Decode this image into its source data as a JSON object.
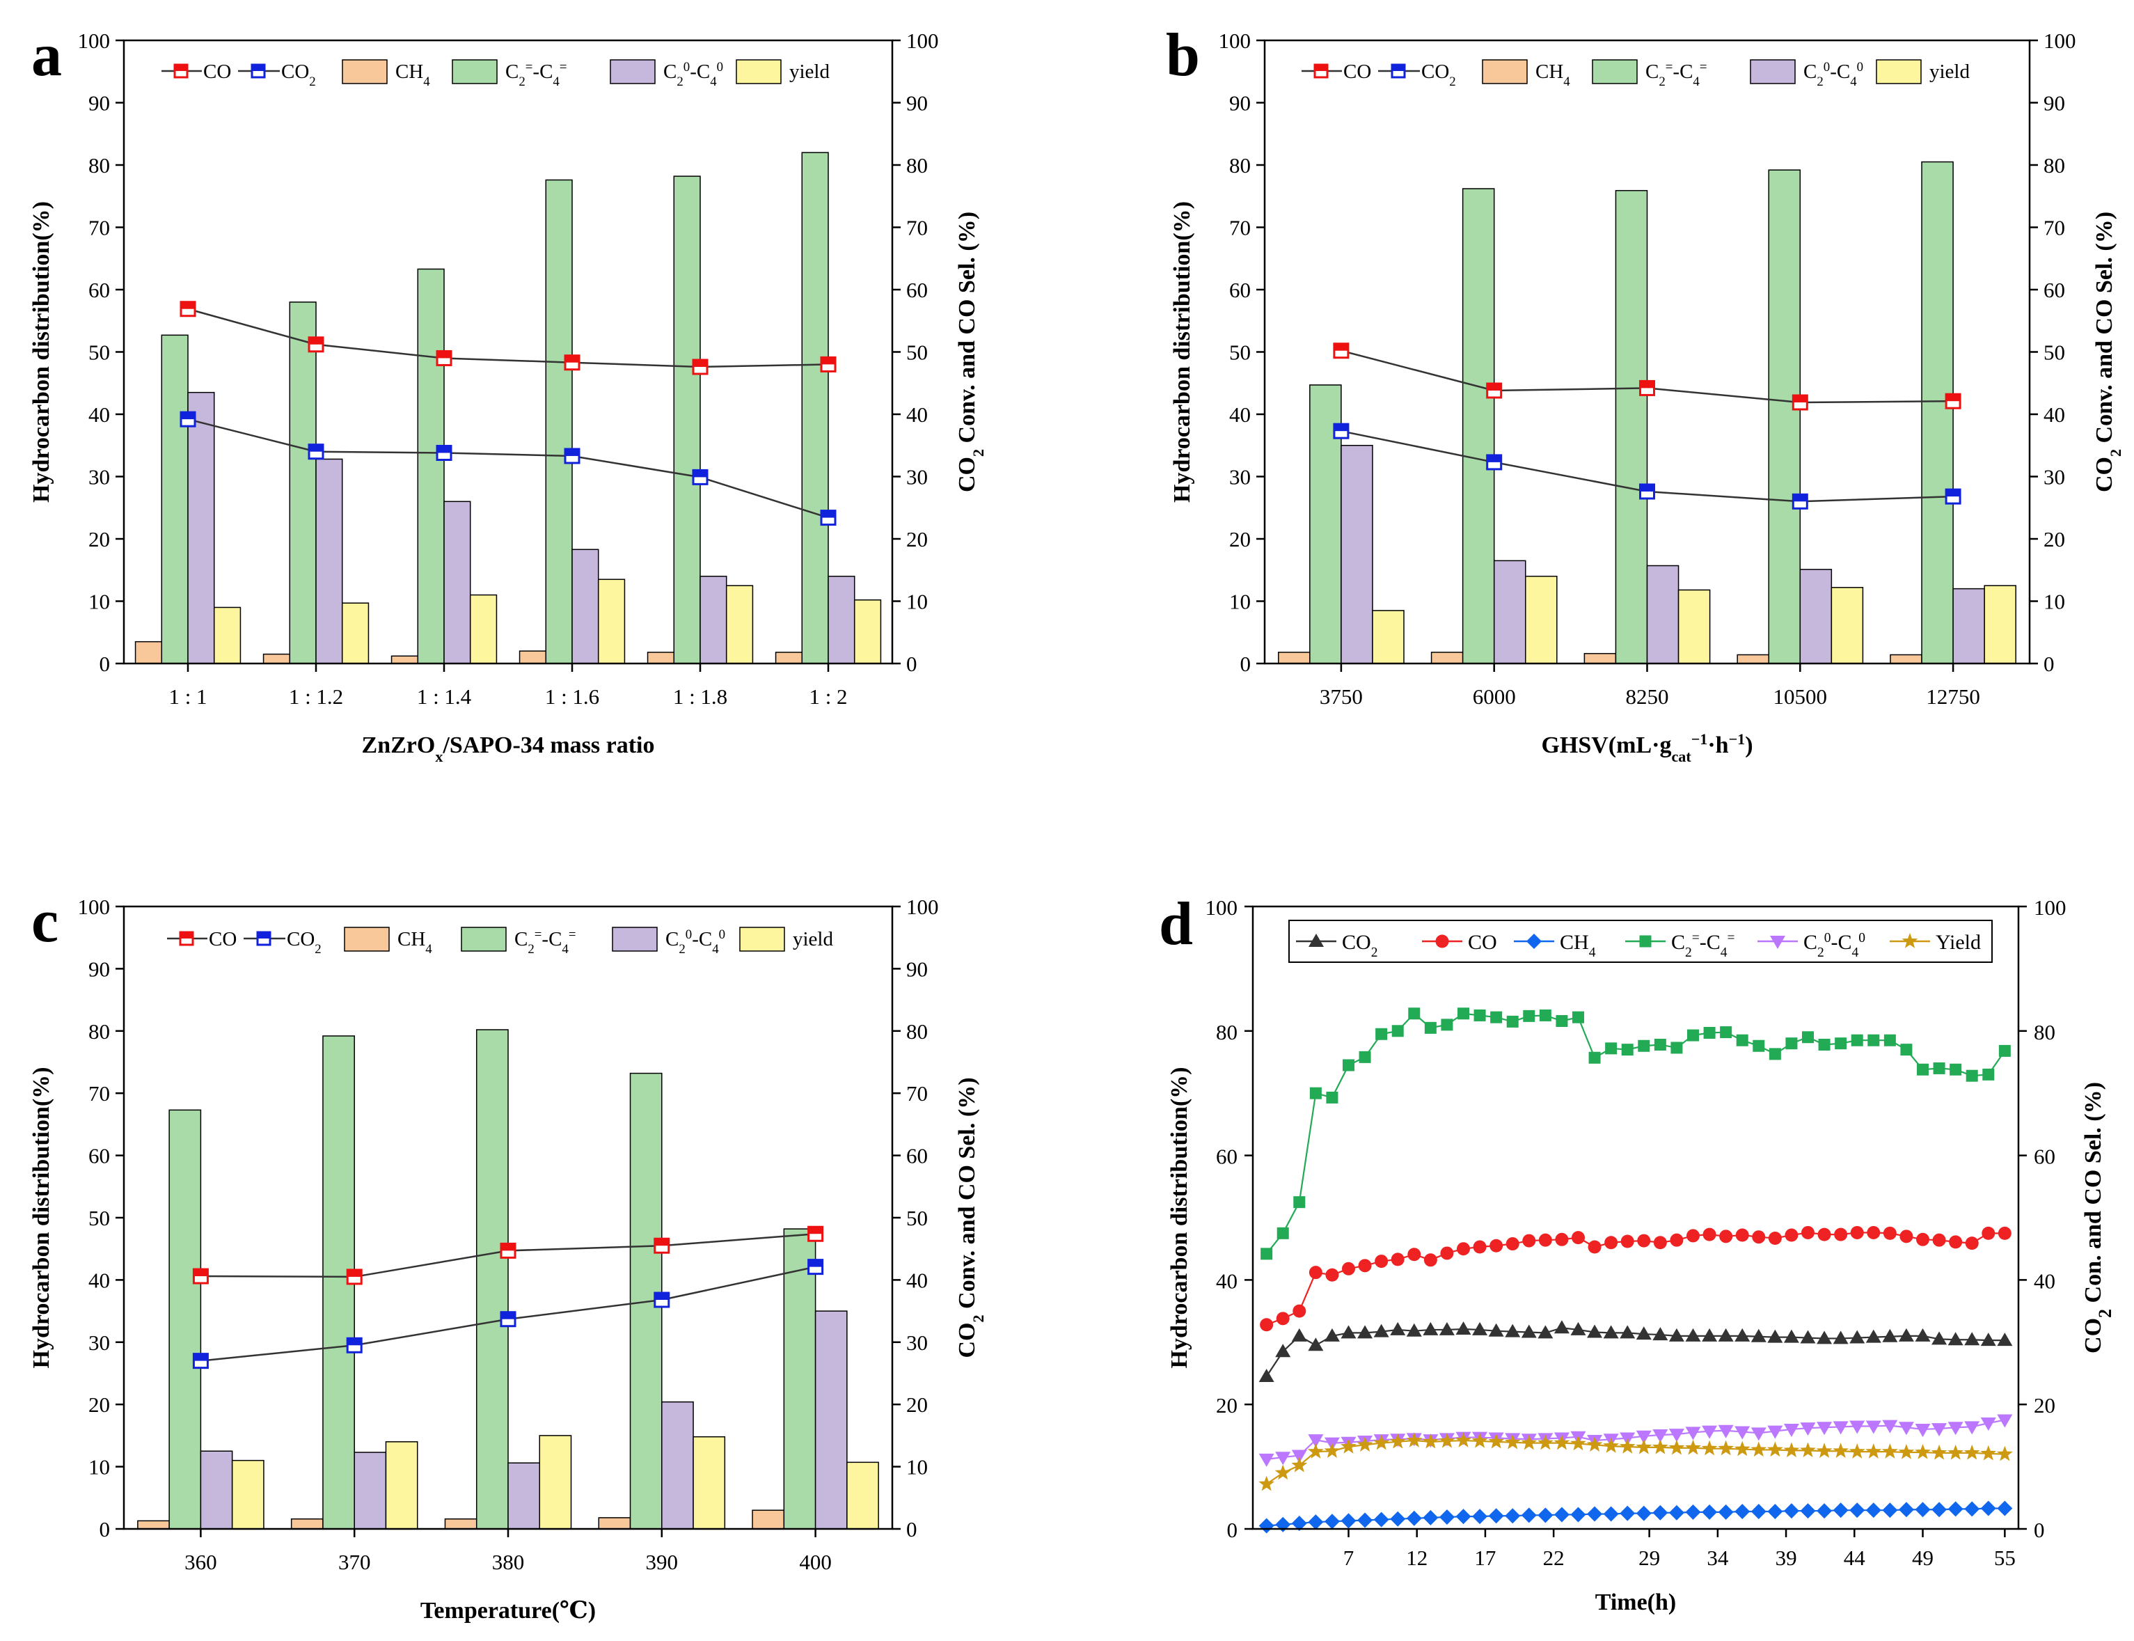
{
  "figure": {
    "bar_colors": {
      "CH4": "#f9c89a",
      "C2=-C4=": "#a8dba8",
      "C20-C40": "#c6b7dc",
      "yield": "#fdf69e"
    },
    "line_colors": {
      "CO": "#ee1111",
      "CO2": "#1122dd",
      "line": "#333333"
    },
    "d_colors": {
      "CO2": "#333333",
      "CO": "#ee2222",
      "CH4": "#1166ee",
      "C2=-C4=": "#22aa55",
      "C20-C40": "#bb77ff",
      "Yield": "#cc9911"
    }
  },
  "chart_data": [
    {
      "panel": "a",
      "type": "bar",
      "xlabel": "ZnZrOx/SAPO-34 mass ratio",
      "ylabel_left": "Hydrocarbon distribution(%)",
      "ylabel_right": "CO2 Conv. and CO Sel. (%)",
      "ylim": [
        0,
        100
      ],
      "yticks": [
        0,
        10,
        20,
        30,
        40,
        50,
        60,
        70,
        80,
        90,
        100
      ],
      "categories": [
        "1 : 1",
        "1 : 1.2",
        "1 : 1.4",
        "1 : 1.6",
        "1 : 1.8",
        "1 : 2"
      ],
      "bar_series": [
        {
          "name": "CH4",
          "values": [
            3.5,
            1.5,
            1.2,
            2.0,
            1.8,
            1.8
          ]
        },
        {
          "name": "C2=-C4=",
          "values": [
            52.7,
            58.0,
            63.3,
            77.6,
            78.2,
            82.0
          ]
        },
        {
          "name": "C20-C40",
          "values": [
            43.5,
            32.8,
            26.0,
            18.3,
            14.0,
            14.0
          ]
        },
        {
          "name": "yield",
          "values": [
            9.0,
            9.7,
            11.0,
            13.5,
            12.5,
            10.2
          ]
        }
      ],
      "line_series": [
        {
          "name": "CO",
          "values": [
            56.9,
            51.2,
            49.0,
            48.3,
            47.6,
            48.0
          ]
        },
        {
          "name": "CO2",
          "values": [
            39.2,
            34.0,
            33.8,
            33.3,
            29.9,
            23.4
          ]
        }
      ],
      "legend": [
        "CO",
        "CO2",
        "CH4",
        "C2=-C4=",
        "C20-C40",
        "yield"
      ]
    },
    {
      "panel": "b",
      "type": "bar",
      "xlabel": "GHSV(mL·gcat−1·h−1)",
      "ylabel_left": "Hydrocarbon distribution(%)",
      "ylabel_right": "CO2 Conv. and CO Sel. (%)",
      "ylim": [
        0,
        100
      ],
      "yticks": [
        0,
        10,
        20,
        30,
        40,
        50,
        60,
        70,
        80,
        90,
        100
      ],
      "categories": [
        "3750",
        "6000",
        "8250",
        "10500",
        "12750"
      ],
      "bar_series": [
        {
          "name": "CH4",
          "values": [
            1.8,
            1.8,
            1.6,
            1.4,
            1.4
          ]
        },
        {
          "name": "C2=-C4=",
          "values": [
            44.7,
            76.2,
            75.9,
            79.2,
            80.5
          ]
        },
        {
          "name": "C20-C40",
          "values": [
            35.0,
            16.5,
            15.7,
            15.1,
            12.0
          ]
        },
        {
          "name": "yield",
          "values": [
            8.5,
            14.0,
            11.8,
            12.2,
            12.5
          ]
        }
      ],
      "line_series": [
        {
          "name": "CO",
          "values": [
            50.2,
            43.8,
            44.2,
            41.9,
            42.1
          ]
        },
        {
          "name": "CO2",
          "values": [
            37.3,
            32.3,
            27.6,
            26.0,
            26.8
          ]
        }
      ],
      "legend": [
        "CO",
        "CO2",
        "CH4",
        "C2=-C4=",
        "C20-C40",
        "yield"
      ]
    },
    {
      "panel": "c",
      "type": "bar",
      "xlabel": "Temperature(℃)",
      "ylabel_left": "Hydrocarbon distribution(%)",
      "ylabel_right": "CO2 Conv. and CO Sel. (%)",
      "ylim": [
        0,
        100
      ],
      "yticks": [
        0,
        10,
        20,
        30,
        40,
        50,
        60,
        70,
        80,
        90,
        100
      ],
      "categories": [
        "360",
        "370",
        "380",
        "390",
        "400"
      ],
      "bar_series": [
        {
          "name": "CH4",
          "values": [
            1.3,
            1.6,
            1.6,
            1.8,
            3.0
          ]
        },
        {
          "name": "C2=-C4=",
          "values": [
            67.3,
            79.2,
            80.2,
            73.2,
            48.2
          ]
        },
        {
          "name": "C20-C40",
          "values": [
            12.5,
            12.3,
            10.6,
            20.4,
            35.0
          ]
        },
        {
          "name": "yield",
          "values": [
            11.0,
            14.0,
            15.0,
            14.8,
            10.7
          ]
        }
      ],
      "line_series": [
        {
          "name": "CO",
          "values": [
            40.6,
            40.5,
            44.7,
            45.5,
            47.4
          ]
        },
        {
          "name": "CO2",
          "values": [
            27.0,
            29.5,
            33.7,
            36.8,
            42.1
          ]
        }
      ],
      "legend": [
        "CO",
        "CO2",
        "CH4",
        "C2=-C4=",
        "C20-C40",
        "yield"
      ]
    },
    {
      "panel": "d",
      "type": "line",
      "xlabel": "Time(h)",
      "ylabel_left": "Hydrocarbon distribution(%)",
      "ylabel_right": "CO2 Con. and CO Sel. (%)",
      "ylim": [
        0,
        100
      ],
      "yticks": [
        0,
        20,
        40,
        60,
        80,
        100
      ],
      "xlim": [
        0,
        56
      ],
      "xticks": [
        7,
        12,
        17,
        22,
        29,
        34,
        39,
        44,
        49,
        55
      ],
      "series": [
        {
          "name": "CO2",
          "values": [
            24.5,
            28.5,
            31.0,
            29.5,
            31.0,
            31.5,
            31.5,
            31.7,
            32.0,
            31.8,
            32.0,
            32.0,
            32.1,
            32.0,
            31.8,
            31.7,
            31.6,
            31.5,
            32.3,
            32.0,
            31.6,
            31.5,
            31.5,
            31.3,
            31.2,
            31.0,
            31.0,
            31.0,
            31.0,
            31.0,
            30.9,
            30.8,
            30.8,
            30.7,
            30.6,
            30.6,
            30.7,
            30.8,
            30.9,
            31.0,
            31.0,
            30.5,
            30.4,
            30.4,
            30.3,
            30.3
          ]
        },
        {
          "name": "CO",
          "values": [
            32.8,
            33.8,
            35.0,
            41.2,
            40.8,
            41.8,
            42.3,
            43.0,
            43.3,
            44.1,
            43.2,
            44.3,
            45.0,
            45.3,
            45.5,
            45.8,
            46.3,
            46.4,
            46.5,
            46.8,
            45.3,
            46.0,
            46.2,
            46.3,
            46.0,
            46.4,
            47.1,
            47.3,
            47.0,
            47.2,
            46.9,
            46.7,
            47.2,
            47.6,
            47.3,
            47.3,
            47.6,
            47.6,
            47.5,
            47.0,
            46.5,
            46.4,
            46.1,
            45.9,
            47.5,
            47.5
          ]
        },
        {
          "name": "CH4",
          "values": [
            0.5,
            0.7,
            0.9,
            1.1,
            1.2,
            1.3,
            1.4,
            1.5,
            1.6,
            1.7,
            1.8,
            1.9,
            2.0,
            2.0,
            2.1,
            2.1,
            2.2,
            2.2,
            2.3,
            2.3,
            2.4,
            2.4,
            2.5,
            2.5,
            2.6,
            2.6,
            2.7,
            2.7,
            2.7,
            2.8,
            2.8,
            2.8,
            2.9,
            2.9,
            2.9,
            3.0,
            3.0,
            3.0,
            3.0,
            3.1,
            3.1,
            3.1,
            3.2,
            3.2,
            3.3,
            3.3
          ]
        },
        {
          "name": "C2=-C4=",
          "values": [
            44.2,
            47.5,
            52.5,
            70.0,
            69.3,
            74.5,
            75.8,
            79.5,
            80.0,
            82.8,
            80.5,
            81.0,
            82.8,
            82.5,
            82.2,
            81.5,
            82.4,
            82.5,
            81.6,
            82.2,
            75.7,
            77.2,
            77.0,
            77.6,
            77.8,
            77.3,
            79.3,
            79.7,
            79.8,
            78.5,
            77.6,
            76.3,
            78.0,
            79.0,
            77.8,
            78.0,
            78.5,
            78.5,
            78.5,
            77.0,
            73.8,
            74.0,
            73.8,
            72.8,
            73.0,
            76.8
          ]
        },
        {
          "name": "C20-C40",
          "values": [
            11.2,
            11.5,
            11.8,
            14.3,
            13.8,
            13.9,
            14.1,
            14.3,
            14.4,
            14.5,
            14.3,
            14.5,
            14.7,
            14.7,
            14.6,
            14.5,
            14.4,
            14.5,
            14.6,
            14.8,
            14.2,
            14.4,
            14.6,
            14.9,
            15.1,
            15.2,
            15.5,
            15.7,
            15.8,
            15.6,
            15.4,
            15.7,
            16.0,
            16.2,
            16.3,
            16.4,
            16.5,
            16.5,
            16.6,
            16.3,
            16.0,
            16.1,
            16.3,
            16.4,
            17.0,
            17.5
          ]
        },
        {
          "name": "Yield",
          "values": [
            7.2,
            9.0,
            10.2,
            12.4,
            12.5,
            13.2,
            13.5,
            13.8,
            14.0,
            14.2,
            14.0,
            14.1,
            14.2,
            14.1,
            14.0,
            13.9,
            13.8,
            13.8,
            13.8,
            13.7,
            13.5,
            13.3,
            13.2,
            13.1,
            13.1,
            13.0,
            13.0,
            12.9,
            12.9,
            12.8,
            12.7,
            12.7,
            12.6,
            12.6,
            12.5,
            12.5,
            12.4,
            12.4,
            12.4,
            12.3,
            12.3,
            12.2,
            12.2,
            12.2,
            12.1,
            12.0
          ]
        }
      ],
      "legend": [
        "CO2",
        "CO",
        "CH4",
        "C2=-C4=",
        "C20-C40",
        "Yield"
      ]
    }
  ]
}
